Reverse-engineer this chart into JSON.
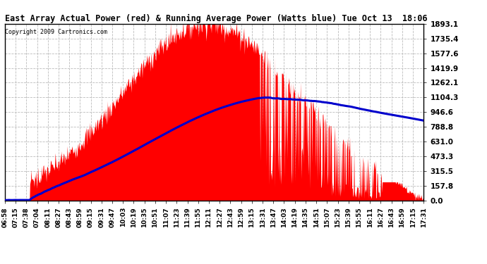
{
  "title": "East Array Actual Power (red) & Running Average Power (Watts blue) Tue Oct 13  18:06",
  "copyright": "Copyright 2009 Cartronics.com",
  "yticks": [
    0.0,
    157.8,
    315.5,
    473.3,
    631.0,
    788.8,
    946.6,
    1104.3,
    1262.1,
    1419.9,
    1577.6,
    1735.4,
    1893.1
  ],
  "ymax": 1893.1,
  "ymin": 0.0,
  "bg_color": "#ffffff",
  "grid_color": "#bbbbbb",
  "red_color": "#ff0000",
  "blue_color": "#0000cc",
  "xtick_labels": [
    "06:58",
    "07:15",
    "07:38",
    "07:04",
    "08:11",
    "08:27",
    "08:43",
    "08:59",
    "09:15",
    "09:31",
    "09:47",
    "10:03",
    "10:19",
    "10:35",
    "10:51",
    "11:07",
    "11:23",
    "11:39",
    "11:55",
    "12:11",
    "12:27",
    "12:43",
    "12:59",
    "13:15",
    "13:31",
    "13:47",
    "14:03",
    "14:19",
    "14:35",
    "14:51",
    "15:07",
    "15:23",
    "15:39",
    "15:55",
    "16:11",
    "16:27",
    "16:43",
    "16:59",
    "17:15",
    "17:31"
  ]
}
